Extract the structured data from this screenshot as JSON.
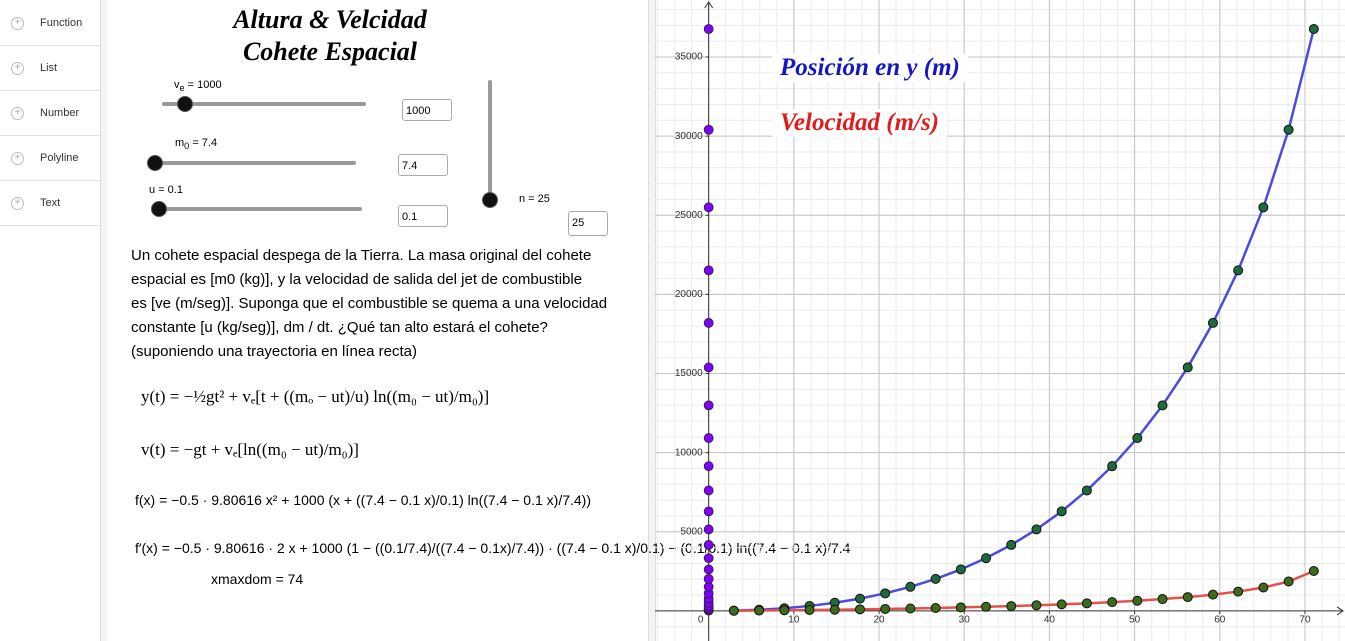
{
  "sidebar": {
    "items": [
      "Function",
      "List",
      "Number",
      "Polyline",
      "Text"
    ]
  },
  "algebra": {
    "title": [
      "Altura & Velcidad",
      "Cohete Espacial"
    ],
    "sliders": [
      {
        "label": "v",
        "sub": "e",
        "rest": " = 1000",
        "input": "1000"
      },
      {
        "label": "m",
        "sub": "0",
        "rest": " = 7.4",
        "input": "7.4"
      },
      {
        "label": "u = 0.1",
        "input": "0.1"
      },
      {
        "label": "n = 25",
        "input": "25"
      }
    ],
    "problem": [
      "Un cohete espacial despega de la Tierra. La masa original del cohete",
      "espacial es [m0 (kg)], y la velocidad de salida del jet de combustible",
      "es [ve (m/seg)].  Suponga que el combustible se quema a una velocidad",
      "constante [u (kg/seg)], dm / dt. ¿Qué tan alto estará el cohete?",
      "(suponiendo una trayectoria en línea recta)"
    ],
    "formulas": [
      "y(t) = −½gt² + vₑ[t + ((mₒ − ut)/u) ln((m₀ − ut)/m₀)]",
      "v(t) = −gt + vₑ[ln((m₀ − ut)/m₀)]",
      "f(x) = −0.5 · 9.80616 x² + 1000 (x + ((7.4 − 0.1 x)/0.1) ln((7.4 − 0.1 x)/7.4))",
      "f′(x) = −0.5 · 9.80616 · 2 x + 1000 (1 − ((0.1/7.4)/((7.4 − 0.1x)/7.4)) · ((7.4 − 0.1 x)/0.1) − (0.1/0.1) ln((7.4 − 0.1 x)/7.4",
      "xmaxdom = 74"
    ]
  },
  "chart_data": {
    "type": "line",
    "labels": [
      "Posición en y (m)",
      "Velocidad (m/s)"
    ],
    "x": [
      2.96,
      5.92,
      8.88,
      11.84,
      14.8,
      17.76,
      20.72,
      23.68,
      26.64,
      29.6,
      32.56,
      35.52,
      38.48,
      41.44,
      44.4,
      47.36,
      50.32,
      53.28,
      56.24,
      59.2,
      62.16,
      65.12,
      68.08,
      71.04
    ],
    "series": [
      {
        "name": "Posición en y (m)",
        "color": "#4b4bdc",
        "point_color": "#1d6b3c",
        "projection_color": "#7f00ff",
        "values": [
          17,
          72,
          169,
          315,
          516,
          779,
          1112,
          1524,
          2024,
          2623,
          3334,
          4171,
          5149,
          6289,
          7612,
          9146,
          10923,
          12986,
          15386,
          18197,
          21517,
          25500,
          30403,
          36768
        ]
      },
      {
        "name": "Velocidad (m/s)",
        "color": "#e8504a",
        "point_color": "#3d6b1d",
        "values": [
          11.8,
          25.3,
          40.8,
          58.2,
          78.0,
          100.3,
          125.3,
          153.5,
          185.1,
          220.6,
          260.5,
          305.6,
          356.6,
          414.6,
          480.9,
          557.2,
          646.0,
          750.5,
          875.6,
          1028.9,
          1223.0,
          1481.7,
          1858.1,
          2522.3
        ]
      }
    ],
    "xlim": [
      -6.3,
      74.7
    ],
    "ylim": [
      -1900,
      38600
    ],
    "xticks": [
      0,
      10,
      20,
      30,
      40,
      50,
      60,
      70
    ],
    "yticks": [
      5000,
      10000,
      15000,
      20000,
      25000,
      30000,
      35000
    ],
    "grid": true
  }
}
